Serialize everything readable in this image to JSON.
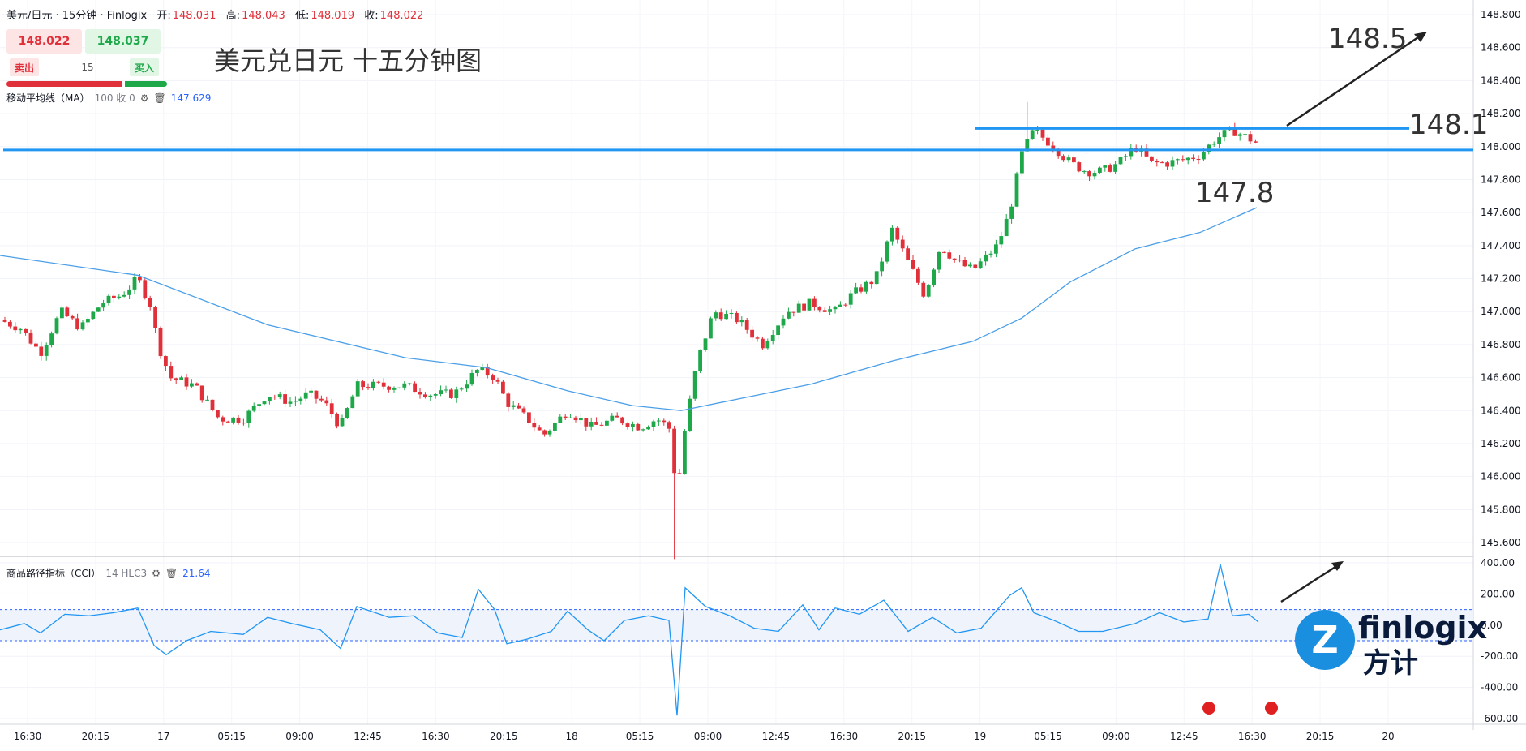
{
  "header": {
    "symbol": "美元/日元 · 15分钟 · Finlogix",
    "open_label": "开:",
    "open": "148.031",
    "high_label": "高:",
    "high": "148.043",
    "low_label": "低:",
    "low": "148.019",
    "close_label": "收:",
    "close": "148.022"
  },
  "trade": {
    "sell_price": "148.022",
    "buy_price": "148.037",
    "sell_label": "卖出",
    "buy_label": "买入",
    "quantity": "15"
  },
  "ma_indicator": {
    "name": "移动平均线（MA）",
    "params": "100 收 0",
    "value": "147.629"
  },
  "cci_indicator": {
    "name": "商品路径指标（CCI）",
    "params": "14 HLC3",
    "value": "21.64"
  },
  "chart_title": "美元兑日元 十五分钟图",
  "annotations": {
    "target_high": "148.5",
    "resistance": "148.1",
    "support": "147.8"
  },
  "logo": {
    "brand": "finlogix",
    "brand_cn": "方计"
  },
  "colors": {
    "up": "#1ea84a",
    "down": "#e0303a",
    "line": "#2196f3",
    "ma": "#4a9fe8",
    "accent": "#2962ff"
  },
  "chart_data": [
    {
      "type": "candlestick",
      "title": "美元兑日元 十五分钟图",
      "y_ticks": [
        "148.800",
        "148.600",
        "148.400",
        "148.200",
        "148.000",
        "147.800",
        "147.600",
        "147.400",
        "147.200",
        "147.000",
        "146.800",
        "146.600",
        "146.400",
        "146.200",
        "146.000",
        "145.800",
        "145.600"
      ],
      "ylim": [
        145.5,
        148.85
      ],
      "x_ticks": [
        "16:30",
        "20:15",
        "17",
        "05:15",
        "09:00",
        "12:45",
        "16:30",
        "20:15",
        "18",
        "05:15",
        "09:00",
        "12:45",
        "16:30",
        "20:15",
        "19",
        "05:15",
        "09:00",
        "12:45",
        "16:30",
        "20:15",
        "20"
      ],
      "horizontal_lines": [
        {
          "value": 147.98,
          "from": "start",
          "to": "end"
        },
        {
          "value": 148.11,
          "from": "19",
          "to": "12:45"
        }
      ],
      "price_path": [
        [
          0,
          146.95
        ],
        [
          25,
          146.9
        ],
        [
          50,
          146.75
        ],
        [
          75,
          147.0
        ],
        [
          100,
          146.9
        ],
        [
          125,
          147.05
        ],
        [
          150,
          147.1
        ],
        [
          170,
          147.2
        ],
        [
          185,
          147.05
        ],
        [
          195,
          146.8
        ],
        [
          210,
          146.6
        ],
        [
          240,
          146.55
        ],
        [
          270,
          146.35
        ],
        [
          300,
          146.35
        ],
        [
          330,
          146.5
        ],
        [
          360,
          146.45
        ],
        [
          380,
          146.5
        ],
        [
          400,
          146.45
        ],
        [
          420,
          146.3
        ],
        [
          440,
          146.55
        ],
        [
          470,
          146.55
        ],
        [
          500,
          146.55
        ],
        [
          530,
          146.5
        ],
        [
          560,
          146.5
        ],
        [
          590,
          146.65
        ],
        [
          610,
          146.6
        ],
        [
          625,
          146.45
        ],
        [
          650,
          146.35
        ],
        [
          670,
          146.25
        ],
        [
          700,
          146.4
        ],
        [
          730,
          146.3
        ],
        [
          760,
          146.35
        ],
        [
          790,
          146.3
        ],
        [
          810,
          146.35
        ],
        [
          825,
          146.3
        ],
        [
          835,
          145.9
        ],
        [
          845,
          146.3
        ],
        [
          860,
          146.7
        ],
        [
          880,
          147.0
        ],
        [
          910,
          146.95
        ],
        [
          940,
          146.8
        ],
        [
          970,
          147.0
        ],
        [
          1000,
          147.05
        ],
        [
          1030,
          147.0
        ],
        [
          1050,
          147.1
        ],
        [
          1080,
          147.2
        ],
        [
          1100,
          147.5
        ],
        [
          1120,
          147.3
        ],
        [
          1140,
          147.1
        ],
        [
          1160,
          147.4
        ],
        [
          1180,
          147.3
        ],
        [
          1200,
          147.25
        ],
        [
          1230,
          147.4
        ],
        [
          1245,
          147.6
        ],
        [
          1260,
          147.95
        ],
        [
          1275,
          148.1
        ],
        [
          1300,
          148.0
        ],
        [
          1320,
          147.9
        ],
        [
          1340,
          147.85
        ],
        [
          1360,
          147.85
        ],
        [
          1380,
          147.9
        ],
        [
          1400,
          148.0
        ],
        [
          1420,
          147.9
        ],
        [
          1440,
          147.9
        ],
        [
          1460,
          147.92
        ],
        [
          1480,
          147.95
        ],
        [
          1500,
          148.05
        ],
        [
          1520,
          148.1
        ],
        [
          1540,
          148.05
        ],
        [
          1550,
          148.02
        ]
      ]
    },
    {
      "type": "line",
      "name": "CCI",
      "y_ticks": [
        "400.00",
        "200.00",
        "0.00",
        "-200.00",
        "-400.00",
        "-600.00"
      ],
      "ylim": [
        -600,
        400
      ],
      "bands": [
        100,
        -100
      ]
    }
  ]
}
